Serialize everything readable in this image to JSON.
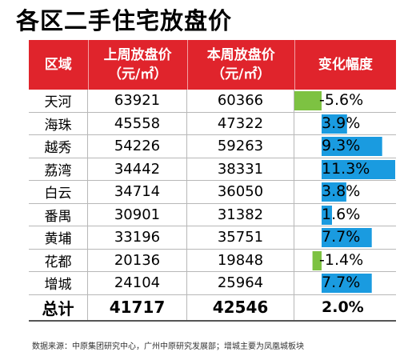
{
  "title": "各区二手住宅放盘价",
  "headers": {
    "district": "区域",
    "last_week_line1": "上周放盘价",
    "last_week_line2": "（元/㎡）",
    "this_week_line1": "本周放盘价",
    "this_week_line2": "（元/㎡）",
    "change": "变化幅度"
  },
  "rows": [
    {
      "district": "天河",
      "last": "63921",
      "this": "60366",
      "change_label": "-5.6%"
    },
    {
      "district": "海珠",
      "last": "45558",
      "this": "47322",
      "change_label": "3.9%"
    },
    {
      "district": "越秀",
      "last": "54226",
      "this": "59263",
      "change_label": "9.3%"
    },
    {
      "district": "荔湾",
      "last": "34442",
      "this": "38331",
      "change_label": "11.3%"
    },
    {
      "district": "白云",
      "last": "34714",
      "this": "36050",
      "change_label": "3.8%"
    },
    {
      "district": "番禺",
      "last": "30901",
      "this": "31382",
      "change_label": "1.6%"
    },
    {
      "district": "黄埔",
      "last": "33196",
      "this": "35751",
      "change_label": "7.7%"
    },
    {
      "district": "花都",
      "last": "20136",
      "this": "19848",
      "change_label": "-1.4%"
    },
    {
      "district": "增城",
      "last": "24104",
      "this": "25964",
      "change_label": "7.7%"
    }
  ],
  "total": {
    "district": "总计",
    "last": "41717",
    "this": "42546",
    "change_label": "2.0%"
  },
  "footer": "数据来源：中原集团研究中心，广州中原研究发展部；增城主要为凤凰城板块",
  "colors": {
    "header_bg": "#e0242c",
    "positive_bar": "#1a9be0",
    "negative_bar": "#7dc242"
  },
  "chart_data": {
    "type": "bar",
    "categories": [
      "天河",
      "海珠",
      "越秀",
      "荔湾",
      "白云",
      "番禺",
      "黄埔",
      "花都",
      "增城",
      "总计"
    ],
    "series": [
      {
        "name": "上周放盘价",
        "values": [
          63921,
          45558,
          54226,
          34442,
          34714,
          30901,
          33196,
          20136,
          24104,
          41717
        ]
      },
      {
        "name": "本周放盘价",
        "values": [
          60366,
          47322,
          59263,
          38331,
          36050,
          31382,
          35751,
          19848,
          25964,
          42546
        ]
      },
      {
        "name": "变化幅度",
        "values": [
          -5.6,
          3.9,
          9.3,
          11.3,
          3.8,
          1.6,
          7.7,
          -1.4,
          7.7,
          2.0
        ]
      }
    ]
  }
}
